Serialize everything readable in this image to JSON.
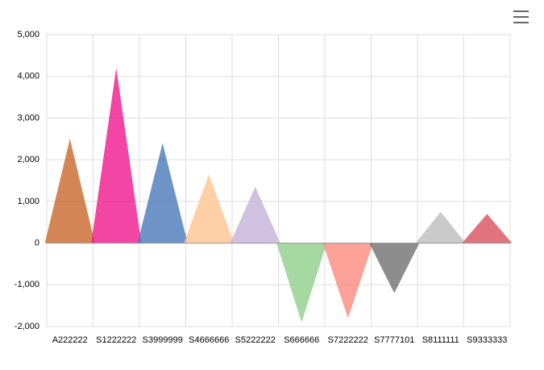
{
  "chart_data": {
    "type": "pictorial-triangle-bar",
    "categories": [
      "A222222",
      "S1222222",
      "S3999999",
      "S4666666",
      "S5222222",
      "S666666",
      "S7222222",
      "S7777101",
      "S8111111",
      "S9333333"
    ],
    "values": [
      2500,
      4200,
      2400,
      1650,
      1350,
      -1900,
      -1800,
      -1200,
      750,
      700
    ],
    "colors": [
      "#c8672a",
      "#f0168c",
      "#4a78b8",
      "#ffc48e",
      "#c4b2d8",
      "#8fcf8a",
      "#fb8a7e",
      "#707070",
      "#bdbdbd",
      "#d9505e"
    ],
    "opacity": 0.8,
    "ylim": [
      -2000,
      5000
    ],
    "yticks": [
      {
        "value": -2000,
        "label": "-2,000"
      },
      {
        "value": -1000,
        "label": "-1,000"
      },
      0,
      {
        "value": 1000,
        "label": "1,000"
      },
      {
        "value": 2000,
        "label": "2,000"
      },
      {
        "value": 3000,
        "label": "3,000"
      },
      {
        "value": 4000,
        "label": "4,000"
      },
      {
        "value": 5000,
        "label": "5,000"
      }
    ],
    "grid": true
  }
}
